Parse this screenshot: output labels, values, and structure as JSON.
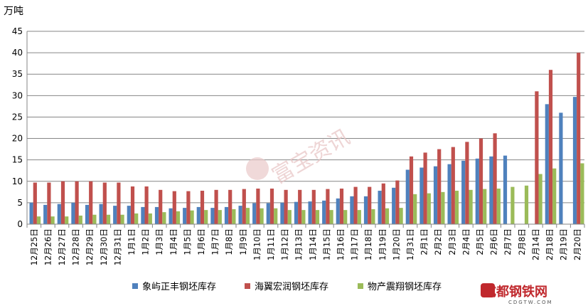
{
  "chart_data": {
    "type": "bar",
    "ylabel": "万吨",
    "ylim": [
      0,
      45
    ],
    "yticks": [
      0,
      5,
      10,
      15,
      20,
      25,
      30,
      35,
      40,
      45
    ],
    "grid": true,
    "legend_position": "bottom",
    "categories": [
      "12月25日",
      "12月26日",
      "12月27日",
      "12月28日",
      "12月29日",
      "12月30日",
      "12月31日",
      "1月1日",
      "1月2日",
      "1月3日",
      "1月4日",
      "1月5日",
      "1月6日",
      "1月7日",
      "1月8日",
      "1月9日",
      "1月10日",
      "1月11日",
      "1月12日",
      "1月13日",
      "1月14日",
      "1月15日",
      "1月16日",
      "1月17日",
      "1月18日",
      "1月19日",
      "1月20日",
      "1月31日",
      "2月1日",
      "2月2日",
      "2月3日",
      "2月4日",
      "2月5日",
      "2月6日",
      "2月7日",
      "2月8日",
      "2月14日",
      "2月18日",
      "2月19日",
      "2月20日"
    ],
    "series": [
      {
        "name": "象屿正丰钢坯库存",
        "color": "#4F81BD",
        "values": [
          5.0,
          4.5,
          4.7,
          5.0,
          4.5,
          4.7,
          4.3,
          4.3,
          4.0,
          4.0,
          3.7,
          3.8,
          4.0,
          3.8,
          4.0,
          4.3,
          4.9,
          4.9,
          5.0,
          5.2,
          5.3,
          5.5,
          6.0,
          6.5,
          6.5,
          7.8,
          8.5,
          12.7,
          13.2,
          13.5,
          14.0,
          14.8,
          15.3,
          15.8,
          16.0,
          null,
          null,
          28.0,
          26.0,
          29.7
        ]
      },
      {
        "name": "海翼宏润钢坯库存",
        "color": "#C0504D",
        "values": [
          9.7,
          9.7,
          10.0,
          10.0,
          10.0,
          9.7,
          9.7,
          8.8,
          8.8,
          8.0,
          7.7,
          7.7,
          7.8,
          8.0,
          8.0,
          8.2,
          8.3,
          8.3,
          8.0,
          8.0,
          8.0,
          8.2,
          8.3,
          8.7,
          8.7,
          9.5,
          10.2,
          15.8,
          16.7,
          17.5,
          18.0,
          19.2,
          20.0,
          21.2,
          null,
          null,
          31.0,
          36.0,
          null,
          40.0
        ]
      },
      {
        "name": "物产震翔钢坯库存",
        "color": "#9BBB59",
        "values": [
          1.8,
          1.8,
          1.8,
          2.0,
          2.2,
          2.2,
          2.2,
          2.5,
          2.5,
          2.8,
          3.0,
          3.2,
          3.3,
          3.3,
          3.5,
          3.8,
          3.7,
          3.7,
          3.3,
          3.3,
          3.3,
          3.3,
          3.3,
          3.3,
          3.5,
          3.7,
          3.8,
          7.0,
          7.2,
          7.5,
          7.8,
          8.0,
          8.2,
          8.3,
          8.7,
          9.0,
          11.7,
          13.0,
          null,
          14.2
        ]
      }
    ]
  },
  "watermark": "富宝资讯",
  "logo": {
    "name": "成都钢铁网",
    "url_text": "CDGTW.COM"
  }
}
